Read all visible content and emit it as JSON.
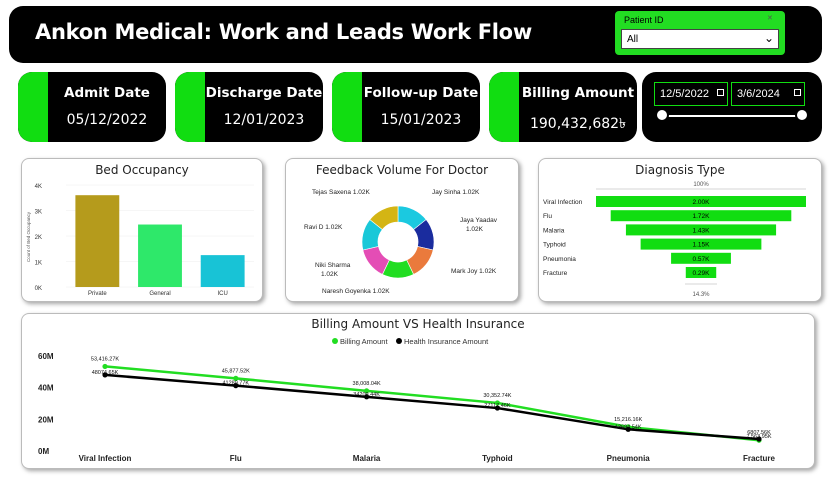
{
  "header": {
    "title": "Ankon Medical: Work and Leads Work Flow",
    "slicer_label": "Patient ID",
    "slicer_value": "All"
  },
  "kpis": [
    {
      "label": "Admit Date",
      "value": "05/12/2022"
    },
    {
      "label": "Discharge Date",
      "value": "12/01/2023"
    },
    {
      "label": "Follow-up Date",
      "value": "15/01/2023"
    },
    {
      "label": "Billing Amount",
      "value": "190,432,682৳"
    }
  ],
  "date_filter": {
    "start": "12/5/2022",
    "end": "3/6/2024"
  },
  "colors": {
    "accent": "#11dd11",
    "dark": "#000000"
  },
  "chart_data": [
    {
      "type": "bar",
      "title": "Bed Occupancy",
      "ylabel": "Count of Bed Occupancy",
      "categories": [
        "Private",
        "General",
        "ICU"
      ],
      "values": [
        3600,
        2450,
        1250
      ],
      "ylim": [
        0,
        4000
      ],
      "yticks": [
        "0K",
        "1K",
        "2K",
        "3K",
        "4K"
      ],
      "colors": [
        "#b59b1c",
        "#2ee86a",
        "#18c3d6"
      ]
    },
    {
      "type": "pie",
      "title": "Feedback Volume For Doctor",
      "categories": [
        "Jay Sinha",
        "Jaya Yaadav",
        "Mark Joy",
        "Naresh Goyenka",
        "Niki Sharma",
        "Ravi D",
        "Tejas Saxena"
      ],
      "values": [
        1.02,
        1.02,
        1.02,
        1.02,
        1.02,
        1.02,
        1.02
      ],
      "labels": [
        "Jay Sinha 1.02K",
        "Jaya Yaadav 1.02K",
        "Mark Joy 1.02K",
        "Naresh Goyenka 1.02K",
        "Niki Sharma 1.02K",
        "Ravi D 1.02K",
        "Tejas Saxena 1.02K"
      ],
      "colors": [
        "#1bc9e0",
        "#1a2c9e",
        "#ea7a3c",
        "#22dd22",
        "#e44db5",
        "#19c8d8",
        "#d4b514"
      ]
    },
    {
      "type": "bar",
      "title": "Diagnosis Type",
      "top_label": "100%",
      "bottom_label": "14.3%",
      "categories": [
        "Viral Infection",
        "Flu",
        "Malaria",
        "Typhoid",
        "Pneumonia",
        "Fracture"
      ],
      "values": [
        2000,
        1720,
        1430,
        1150,
        570,
        290
      ],
      "value_labels": [
        "2.00K",
        "1.72K",
        "1.43K",
        "1.15K",
        "0.57K",
        "0.29K"
      ]
    },
    {
      "type": "line",
      "title": "Billing Amount VS Health Insurance",
      "categories": [
        "Viral Infection",
        "Flu",
        "Malaria",
        "Typhoid",
        "Pneumonia",
        "Fracture"
      ],
      "ylim": [
        0,
        60
      ],
      "yticks": [
        "0M",
        "20M",
        "40M",
        "60M"
      ],
      "series": [
        {
          "name": "Billing Amount",
          "color": "#22dd22",
          "values": [
            53.41627,
            45.87752,
            38.00804,
            30.35274,
            15.21616,
            6.80756
          ],
          "labels": [
            "53,416.27K",
            "45,877.52K",
            "38,008.04K",
            "30,352.74K",
            "15,216.16K",
            "6807.56K"
          ]
        },
        {
          "name": "Health Insurance Amount",
          "color": "#000000",
          "values": [
            48.07465,
            41.28977,
            34.20944,
            27.11746,
            13.69454,
            7.56395
          ],
          "labels": [
            "48074.65K",
            "41289.77K",
            "34209.44K",
            "27117.46K",
            "13694.54K",
            "7,563.95K"
          ]
        }
      ]
    }
  ]
}
